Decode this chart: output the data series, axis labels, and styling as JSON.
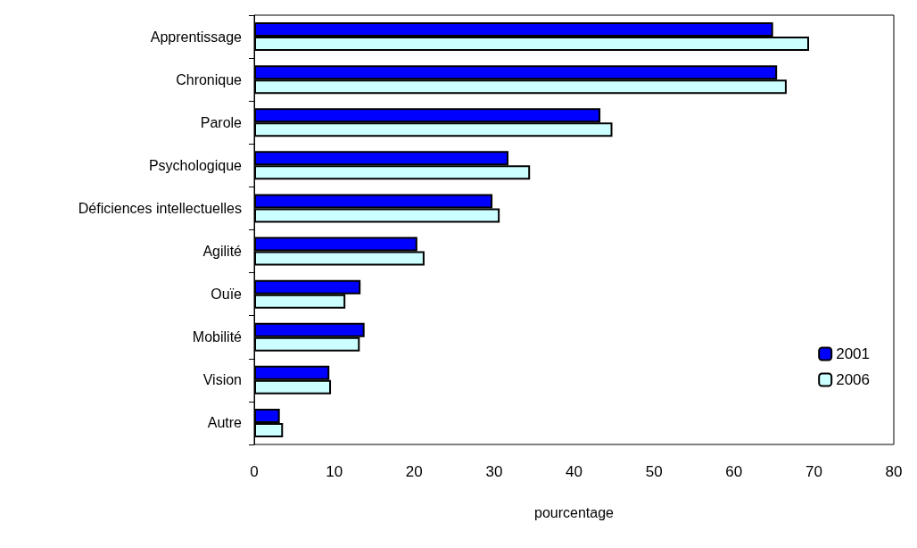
{
  "chart_data": {
    "type": "bar",
    "orientation": "horizontal",
    "xlabel": "pourcentage",
    "categories": [
      "Apprentissage",
      "Chronique",
      "Parole",
      "Psychologique",
      "Déficiences intellectuelles",
      "Agilité",
      "Ouïe",
      "Mobilité",
      "Vision",
      "Autre"
    ],
    "series": [
      {
        "name": "2001",
        "color": "#0000ff",
        "values": [
          64.9,
          65.4,
          43.3,
          31.8,
          29.8,
          20.4,
          13.3,
          13.8,
          9.4,
          3.2
        ]
      },
      {
        "name": "2006",
        "color": "#ccffff",
        "values": [
          69.4,
          66.6,
          44.8,
          34.5,
          30.7,
          21.3,
          11.4,
          13.2,
          9.6,
          3.6
        ]
      }
    ],
    "xlim": [
      0,
      80
    ],
    "xticks": [
      0,
      10,
      20,
      30,
      40,
      50,
      60,
      70,
      80
    ],
    "grid": false,
    "legend": "right"
  }
}
